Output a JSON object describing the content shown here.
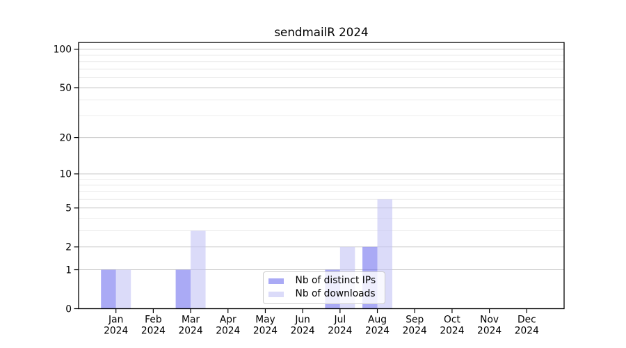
{
  "chart_data": {
    "type": "bar",
    "title": "sendmailR 2024",
    "categories": [
      "Jan",
      "Feb",
      "Mar",
      "Apr",
      "May",
      "Jun",
      "Jul",
      "Aug",
      "Sep",
      "Oct",
      "Nov",
      "Dec"
    ],
    "x_year": "2024",
    "series": [
      {
        "name": "Nb of distinct IPs",
        "color": "#7171ee",
        "values": [
          1,
          0,
          1,
          0,
          0,
          0,
          1,
          2,
          0,
          0,
          0,
          0
        ]
      },
      {
        "name": "Nb of downloads",
        "color": "#c3c3f5",
        "values": [
          1,
          0,
          3,
          0,
          0,
          0,
          2,
          6,
          0,
          0,
          0,
          0
        ]
      }
    ],
    "bar_opacity": 0.6,
    "y_scale": "log1p",
    "y_ticks": [
      0,
      1,
      2,
      5,
      10,
      20,
      50,
      100
    ],
    "y_minor_gridlines": [
      3,
      4,
      6,
      7,
      8,
      9,
      30,
      40,
      60,
      70,
      80,
      90
    ],
    "ylim": [
      0,
      113
    ],
    "grid": true,
    "legend_position": "lower center",
    "colors": {
      "grid_major": "#c9c9c9",
      "grid_minor": "#ececec",
      "axis": "#000000",
      "legend_border": "#cccccc",
      "background": "#ffffff"
    }
  }
}
